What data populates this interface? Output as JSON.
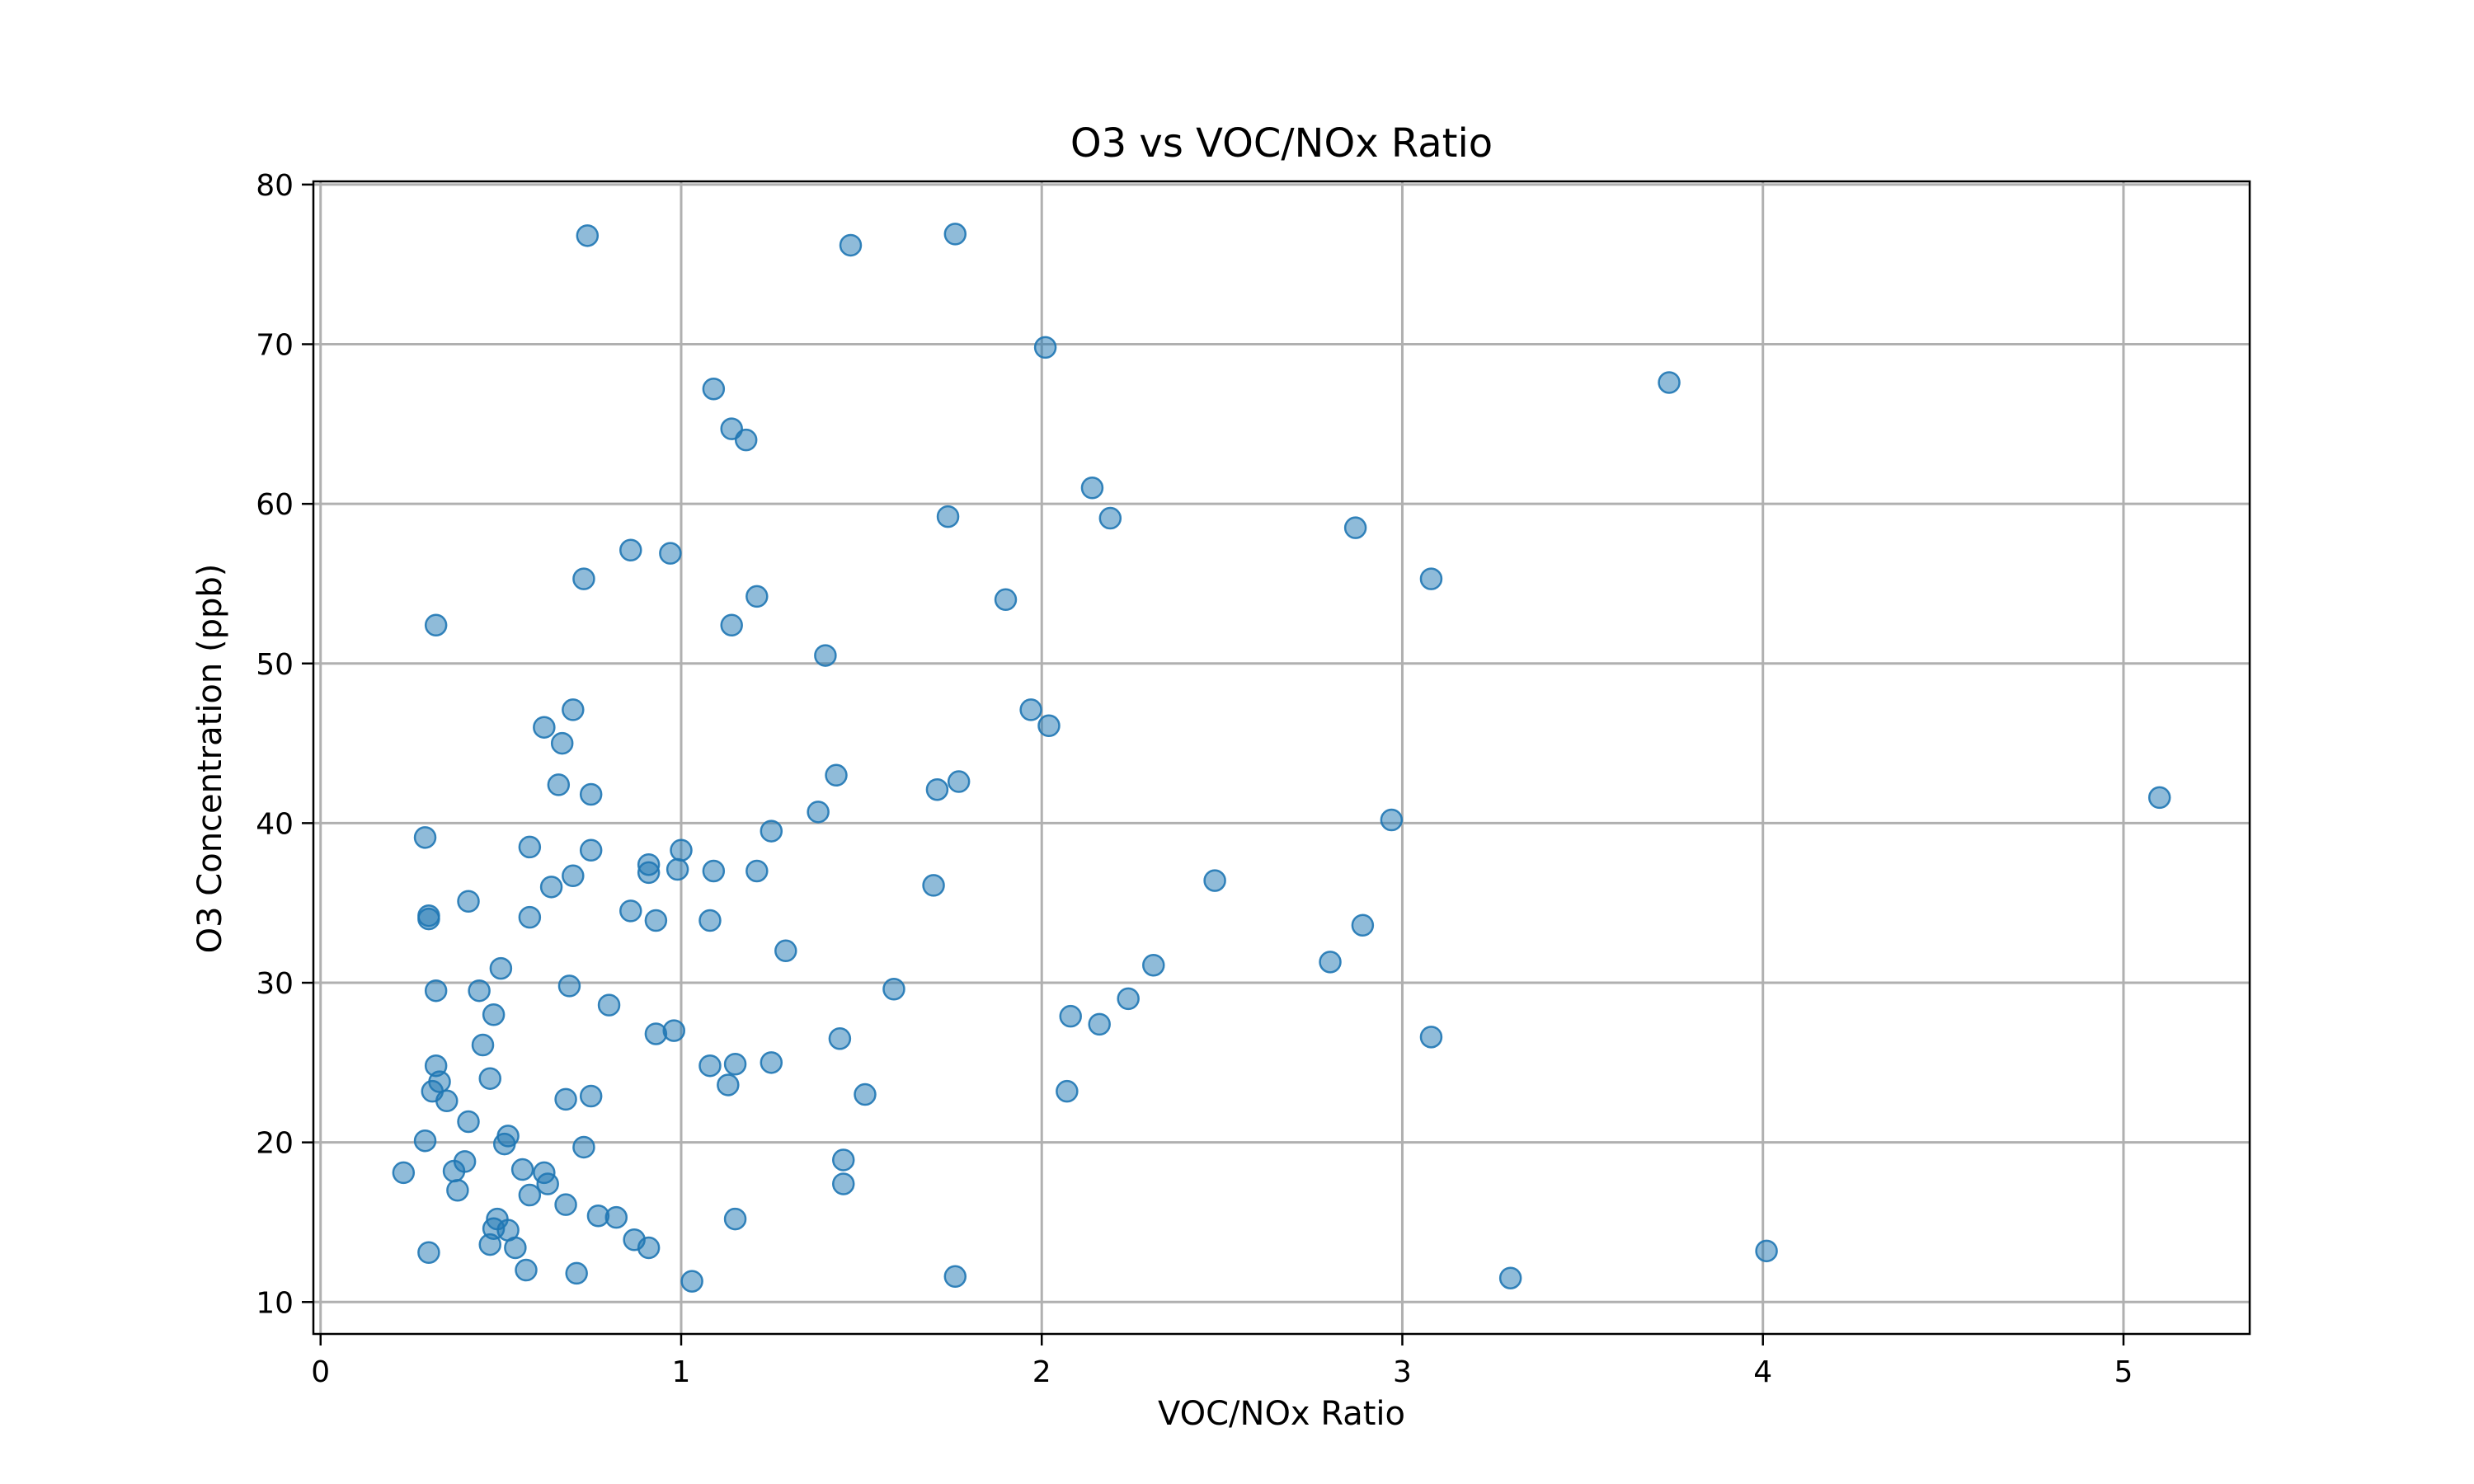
{
  "chart_data": {
    "type": "scatter",
    "title": "O3 vs VOC/NOx Ratio",
    "xlabel": "VOC/NOx Ratio",
    "ylabel": "O3 Concentration (ppb)",
    "xlim": [
      -0.02,
      5.35
    ],
    "ylim": [
      8,
      80.2
    ],
    "xticks": [
      0,
      1,
      2,
      3,
      4,
      5
    ],
    "yticks": [
      10,
      20,
      30,
      40,
      50,
      60,
      70,
      80
    ],
    "grid": true,
    "color": "#1f77b4",
    "points": [
      [
        0.74,
        76.8
      ],
      [
        1.47,
        76.2
      ],
      [
        1.76,
        76.9
      ],
      [
        2.01,
        69.8
      ],
      [
        3.74,
        67.6
      ],
      [
        1.09,
        67.2
      ],
      [
        1.14,
        64.7
      ],
      [
        1.18,
        64.0
      ],
      [
        2.14,
        61.0
      ],
      [
        1.74,
        59.2
      ],
      [
        2.19,
        59.1
      ],
      [
        2.87,
        58.5
      ],
      [
        0.86,
        57.1
      ],
      [
        0.97,
        56.9
      ],
      [
        0.73,
        55.3
      ],
      [
        3.08,
        55.3
      ],
      [
        1.21,
        54.2
      ],
      [
        1.9,
        54.0
      ],
      [
        0.32,
        52.4
      ],
      [
        1.14,
        52.4
      ],
      [
        1.4,
        50.5
      ],
      [
        0.7,
        47.1
      ],
      [
        1.97,
        47.1
      ],
      [
        2.02,
        46.1
      ],
      [
        0.62,
        46.0
      ],
      [
        0.67,
        45.0
      ],
      [
        1.43,
        43.0
      ],
      [
        0.66,
        42.4
      ],
      [
        1.77,
        42.6
      ],
      [
        1.71,
        42.1
      ],
      [
        0.75,
        41.8
      ],
      [
        5.1,
        41.6
      ],
      [
        1.38,
        40.7
      ],
      [
        2.97,
        40.2
      ],
      [
        1.25,
        39.5
      ],
      [
        0.29,
        39.1
      ],
      [
        0.58,
        38.5
      ],
      [
        0.75,
        38.3
      ],
      [
        1.0,
        38.3
      ],
      [
        0.91,
        37.4
      ],
      [
        0.99,
        37.1
      ],
      [
        1.09,
        37.0
      ],
      [
        1.21,
        37.0
      ],
      [
        0.91,
        36.9
      ],
      [
        0.7,
        36.7
      ],
      [
        2.48,
        36.4
      ],
      [
        1.7,
        36.1
      ],
      [
        0.64,
        36.0
      ],
      [
        0.41,
        35.1
      ],
      [
        0.86,
        34.5
      ],
      [
        0.3,
        34.2
      ],
      [
        0.58,
        34.1
      ],
      [
        0.3,
        34.0
      ],
      [
        0.93,
        33.9
      ],
      [
        1.08,
        33.9
      ],
      [
        2.89,
        33.6
      ],
      [
        1.29,
        32.0
      ],
      [
        2.8,
        31.3
      ],
      [
        2.31,
        31.1
      ],
      [
        0.5,
        30.9
      ],
      [
        0.69,
        29.8
      ],
      [
        1.59,
        29.6
      ],
      [
        0.32,
        29.5
      ],
      [
        0.44,
        29.5
      ],
      [
        2.24,
        29.0
      ],
      [
        0.8,
        28.6
      ],
      [
        0.48,
        28.0
      ],
      [
        2.08,
        27.9
      ],
      [
        2.16,
        27.4
      ],
      [
        0.98,
        27.0
      ],
      [
        0.93,
        26.8
      ],
      [
        3.08,
        26.6
      ],
      [
        1.44,
        26.5
      ],
      [
        0.45,
        26.1
      ],
      [
        1.25,
        25.0
      ],
      [
        0.32,
        24.8
      ],
      [
        1.08,
        24.8
      ],
      [
        1.15,
        24.9
      ],
      [
        0.47,
        24.0
      ],
      [
        0.33,
        23.8
      ],
      [
        1.13,
        23.6
      ],
      [
        0.31,
        23.2
      ],
      [
        2.07,
        23.2
      ],
      [
        1.51,
        23.0
      ],
      [
        0.75,
        22.9
      ],
      [
        0.68,
        22.7
      ],
      [
        0.35,
        22.6
      ],
      [
        0.41,
        21.3
      ],
      [
        0.52,
        20.4
      ],
      [
        0.29,
        20.1
      ],
      [
        0.51,
        19.9
      ],
      [
        0.73,
        19.7
      ],
      [
        0.4,
        18.8
      ],
      [
        1.45,
        18.9
      ],
      [
        0.37,
        18.2
      ],
      [
        0.56,
        18.3
      ],
      [
        0.62,
        18.1
      ],
      [
        0.23,
        18.1
      ],
      [
        0.63,
        17.4
      ],
      [
        1.45,
        17.4
      ],
      [
        0.38,
        17.0
      ],
      [
        0.58,
        16.7
      ],
      [
        0.68,
        16.1
      ],
      [
        0.77,
        15.4
      ],
      [
        0.82,
        15.3
      ],
      [
        1.15,
        15.2
      ],
      [
        0.49,
        15.2
      ],
      [
        0.48,
        14.6
      ],
      [
        0.52,
        14.5
      ],
      [
        0.87,
        13.9
      ],
      [
        0.47,
        13.6
      ],
      [
        0.54,
        13.4
      ],
      [
        0.91,
        13.4
      ],
      [
        0.3,
        13.1
      ],
      [
        4.01,
        13.2
      ],
      [
        0.57,
        12.0
      ],
      [
        0.71,
        11.8
      ],
      [
        1.76,
        11.6
      ],
      [
        3.3,
        11.5
      ],
      [
        1.03,
        11.3
      ]
    ]
  }
}
